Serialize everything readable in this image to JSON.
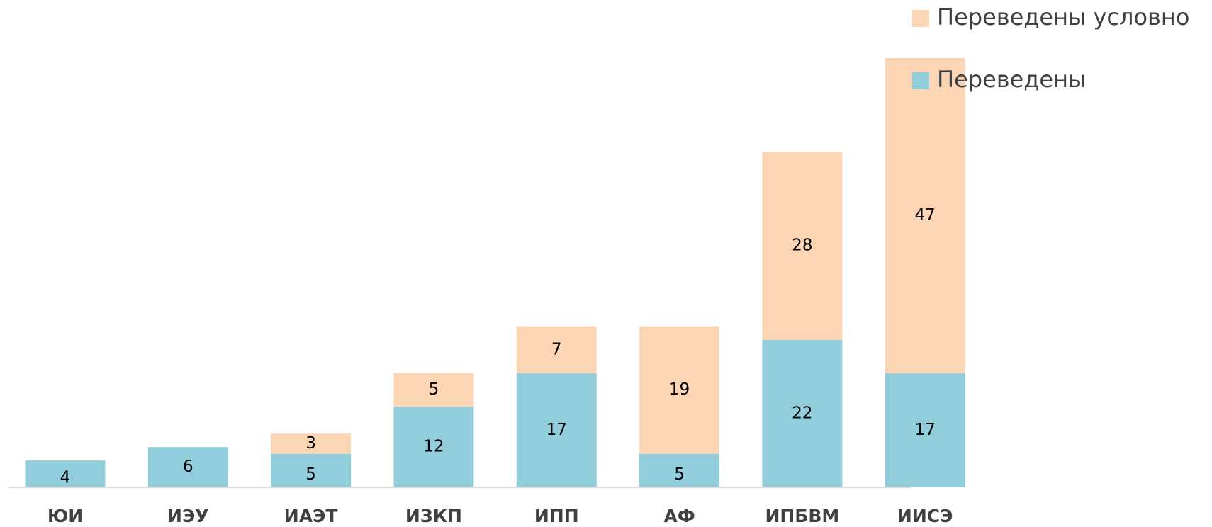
{
  "chart_data": {
    "type": "stacked_bar",
    "categories": [
      "ЮИ",
      "ИЭУ",
      "ИАЭТ",
      "ИЗКП",
      "ИПП",
      "АФ",
      "ИПБВМ",
      "ИИСЭ"
    ],
    "series": [
      {
        "name": "Переведены",
        "color": "#92cddc",
        "values": [
          4,
          6,
          5,
          12,
          17,
          5,
          22,
          17
        ]
      },
      {
        "name": "Переведены условно",
        "color": "#fcd5b5",
        "values": [
          null,
          null,
          3,
          5,
          7,
          19,
          28,
          47
        ]
      }
    ],
    "legend": "top-right"
  }
}
